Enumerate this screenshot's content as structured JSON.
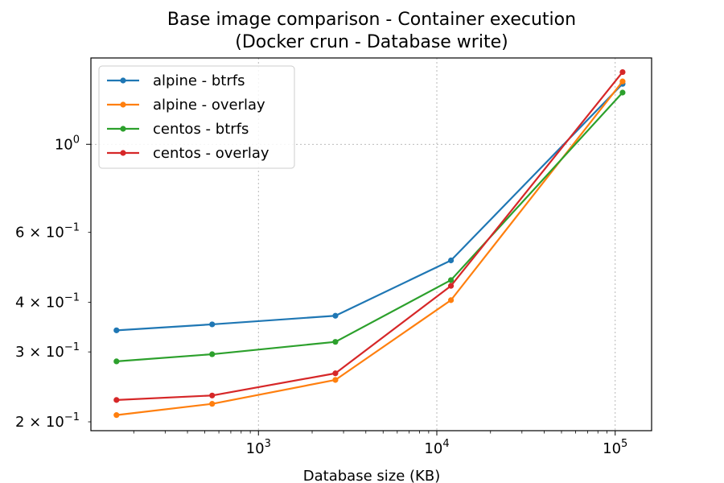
{
  "chart_data": {
    "type": "line",
    "title": "Base image comparison - Container execution",
    "subtitle": "(Docker crun - Database write)",
    "xlabel": "Database size (KB)",
    "ylabel": "",
    "x_scale": "log",
    "y_scale": "log",
    "xlim": [
      115,
      160000
    ],
    "ylim": [
      0.19,
      1.65
    ],
    "grid": true,
    "legend_position": "top-left",
    "x_ticks": [
      {
        "value": 1000,
        "base": "10",
        "exp": "3"
      },
      {
        "value": 10000,
        "base": "10",
        "exp": "4"
      },
      {
        "value": 100000,
        "base": "10",
        "exp": "5"
      }
    ],
    "y_ticks": [
      {
        "value": 1.0,
        "label": "10",
        "exp": "0",
        "mant": ""
      },
      {
        "value": 0.6,
        "label": "10",
        "exp": "−1",
        "mant": "6 × "
      },
      {
        "value": 0.4,
        "label": "10",
        "exp": "−1",
        "mant": "4 × "
      },
      {
        "value": 0.3,
        "label": "10",
        "exp": "−1",
        "mant": "3 × "
      },
      {
        "value": 0.2,
        "label": "10",
        "exp": "−1",
        "mant": "2 × "
      }
    ],
    "x": [
      160,
      550,
      2700,
      12000,
      110000
    ],
    "series": [
      {
        "name": "alpine - btrfs",
        "color": "#1f77b4",
        "values": [
          0.34,
          0.352,
          0.37,
          0.51,
          1.42
        ]
      },
      {
        "name": "alpine - overlay",
        "color": "#ff7f0e",
        "values": [
          0.208,
          0.222,
          0.255,
          0.405,
          1.44
        ]
      },
      {
        "name": "centos - btrfs",
        "color": "#2ca02c",
        "values": [
          0.284,
          0.296,
          0.318,
          0.455,
          1.35
        ]
      },
      {
        "name": "centos - overlay",
        "color": "#d62728",
        "values": [
          0.227,
          0.233,
          0.265,
          0.44,
          1.52
        ]
      }
    ]
  }
}
